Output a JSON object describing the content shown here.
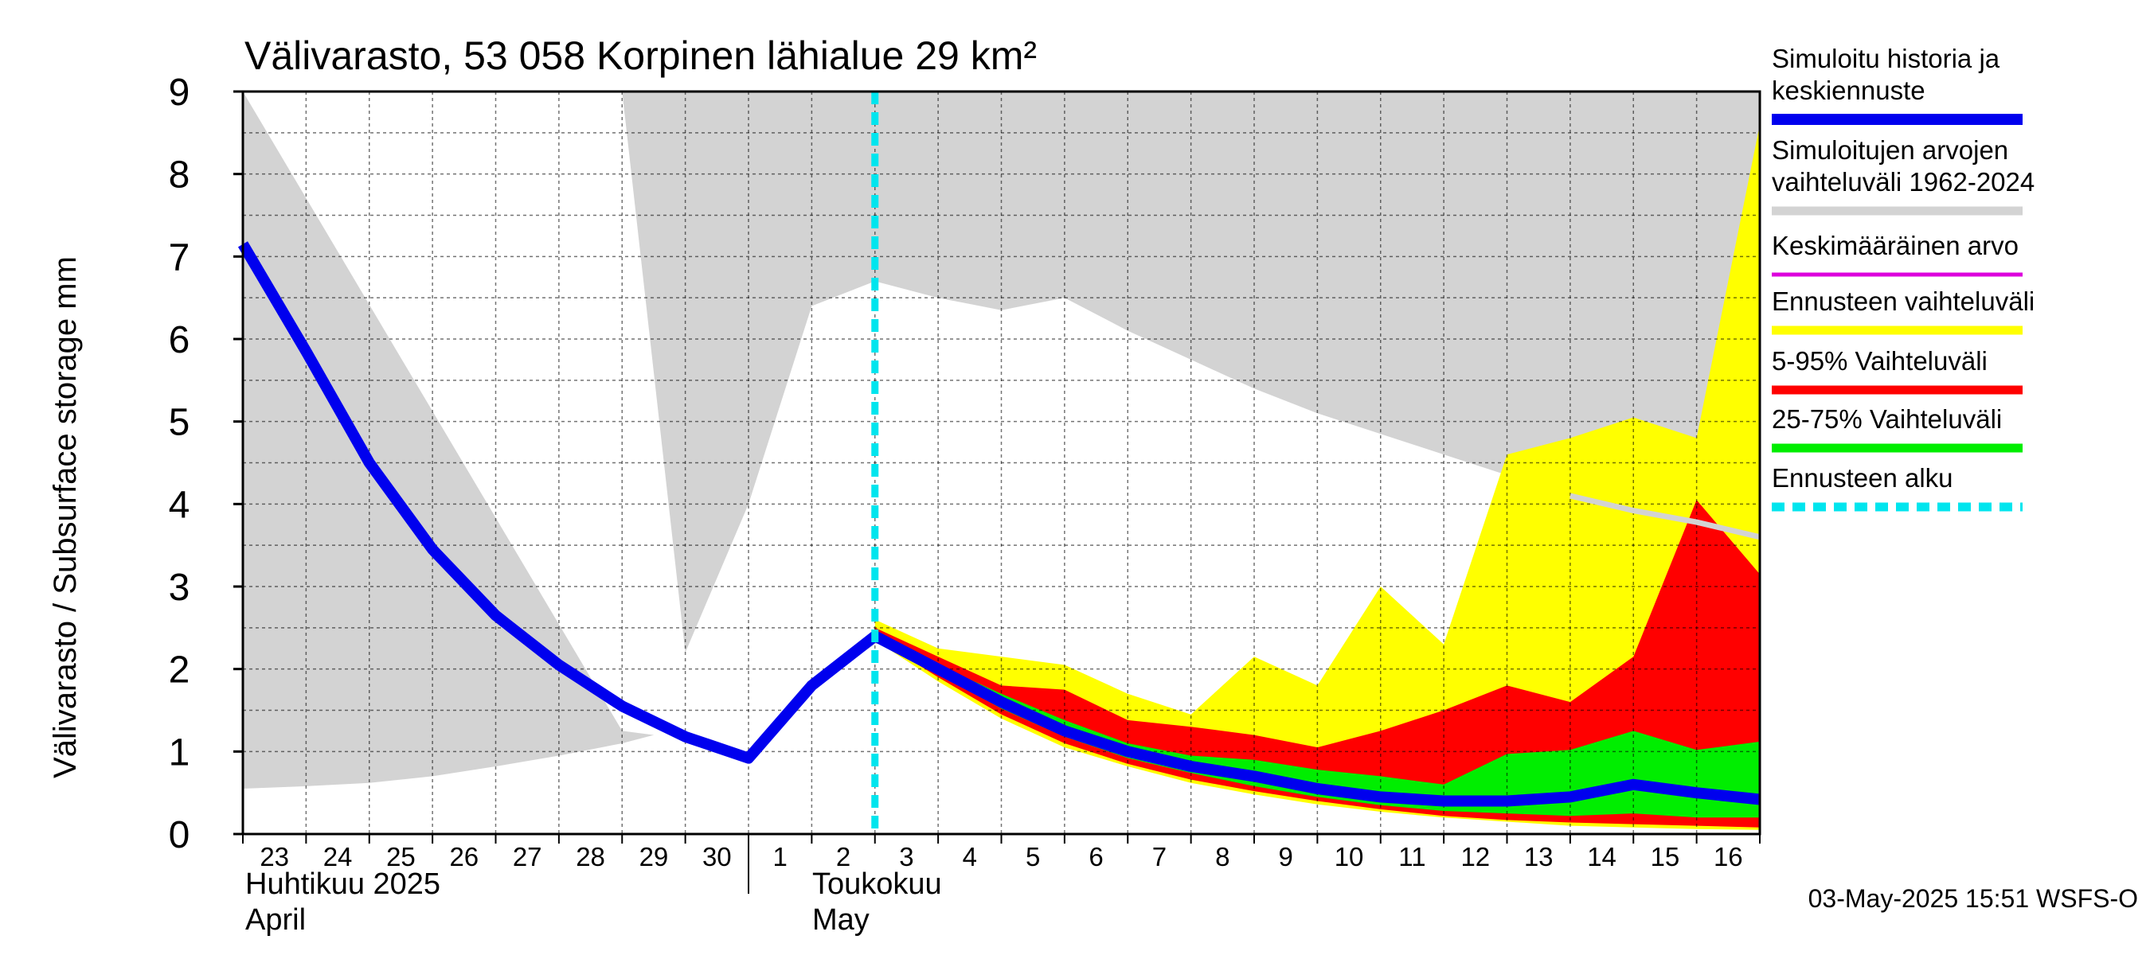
{
  "chart_data": {
    "type": "area",
    "title": "Välivarasto, 53 058 Korpinen lähialue 29 km²",
    "ylabel": "Välivarasto / Subsurface storage  mm",
    "ylim": [
      0,
      9
    ],
    "yticks": [
      "0",
      "1",
      "2",
      "3",
      "4",
      "5",
      "6",
      "7",
      "8",
      "9"
    ],
    "grid": true,
    "legend_position": "right",
    "x_days": [
      "23",
      "24",
      "25",
      "26",
      "27",
      "28",
      "29",
      "30",
      "1",
      "2",
      "3",
      "4",
      "5",
      "6",
      "7",
      "8",
      "9",
      "10",
      "11",
      "12",
      "13",
      "14",
      "15",
      "16"
    ],
    "month_labels": {
      "april_fi": "Huhtikuu  2025",
      "april_en": "April",
      "may_fi": "Toukokuu",
      "may_en": "May"
    },
    "forecast_start": "2025-05-03",
    "timestamp": "03-May-2025 15:51 WSFS-O",
    "colors": {
      "history_range": "#d3d3d3",
      "simulated": "#0000ee",
      "mean": "#dd00dd",
      "forecast_range": "#ffff00",
      "range_5_95": "#ff0000",
      "range_25_75": "#00ee00",
      "forecast_start": "#00e5ee"
    },
    "legend": [
      {
        "lines": [
          "Simuloitu historia ja",
          "keskiennuste"
        ],
        "color": "#0000ee"
      },
      {
        "lines": [
          "Simuloitujen arvojen",
          "vaihteluväli 1962-2024"
        ],
        "color": "#d3d3d3"
      },
      {
        "lines": [
          "Keskimääräinen arvo"
        ],
        "color": "#dd00dd"
      },
      {
        "lines": [
          "Ennusteen vaihteluväli"
        ],
        "color": "#ffff00"
      },
      {
        "lines": [
          "5-95% Vaihteluväli"
        ],
        "color": "#ff0000"
      },
      {
        "lines": [
          "25-75% Vaihteluväli"
        ],
        "color": "#00ee00"
      },
      {
        "lines": [
          "Ennusteen alku"
        ],
        "color": "#00e5ee"
      }
    ],
    "series": {
      "hist_min": [
        [
          0,
          0.55
        ],
        [
          1,
          0.58
        ],
        [
          2,
          0.62
        ],
        [
          3,
          0.7
        ],
        [
          4,
          0.82
        ],
        [
          5,
          0.95
        ],
        [
          6,
          1.1
        ],
        [
          7,
          1.3
        ],
        [
          8,
          1.45
        ],
        [
          9,
          1.8
        ],
        [
          10,
          2.3
        ],
        [
          11,
          2.45
        ],
        [
          12,
          2.4
        ],
        [
          13,
          2.2
        ],
        [
          14,
          1.9
        ],
        [
          15,
          1.6
        ],
        [
          16,
          1.35
        ],
        [
          17,
          1.1
        ],
        [
          18,
          0.95
        ],
        [
          19,
          0.75
        ],
        [
          20,
          0.6
        ],
        [
          21,
          0.5
        ],
        [
          22,
          0.45
        ],
        [
          23,
          0.4
        ],
        [
          24,
          0.35
        ]
      ],
      "hist_max": [
        [
          0,
          9
        ],
        [
          7,
          9
        ],
        [
          8,
          9
        ],
        [
          9,
          9
        ],
        [
          10,
          9
        ],
        [
          11,
          9
        ],
        [
          12,
          9
        ],
        [
          13,
          9
        ],
        [
          14,
          9
        ],
        [
          15,
          9
        ],
        [
          16,
          9
        ],
        [
          17,
          9
        ],
        [
          18,
          9
        ],
        [
          19,
          9
        ],
        [
          20,
          9
        ],
        [
          21,
          9
        ],
        [
          22,
          9
        ],
        [
          23,
          9
        ],
        [
          24,
          9
        ]
      ],
      "hist_white_top": [
        [
          0,
          9
        ],
        [
          6,
          9
        ],
        [
          7,
          2.2
        ],
        [
          8,
          4.0
        ],
        [
          9,
          6.4
        ],
        [
          10,
          6.7
        ],
        [
          11,
          6.5
        ],
        [
          12,
          6.35
        ],
        [
          13,
          6.5
        ],
        [
          14,
          6.1
        ],
        [
          15,
          5.75
        ],
        [
          16,
          5.4
        ],
        [
          17,
          5.1
        ],
        [
          18,
          4.85
        ],
        [
          19,
          4.6
        ],
        [
          20,
          4.35
        ],
        [
          21,
          4.1
        ],
        [
          22,
          3.92
        ],
        [
          23,
          3.78
        ],
        [
          24,
          3.6
        ]
      ],
      "hist_white_bottom": [
        [
          6,
          1.25
        ],
        [
          7,
          1.15
        ],
        [
          8,
          0.9
        ],
        [
          9,
          1.75
        ],
        [
          10,
          2.4
        ],
        [
          11,
          1.95
        ],
        [
          12,
          1.48
        ],
        [
          13,
          1.15
        ],
        [
          14,
          0.88
        ],
        [
          15,
          0.67
        ],
        [
          16,
          0.52
        ],
        [
          17,
          0.4
        ],
        [
          18,
          0.3
        ],
        [
          19,
          0.2
        ],
        [
          20,
          0.15
        ],
        [
          21,
          0.1
        ],
        [
          22,
          0.08
        ],
        [
          23,
          0.06
        ],
        [
          24,
          0.05
        ]
      ],
      "mean": [
        [
          21,
          4.1
        ],
        [
          22,
          3.92
        ],
        [
          23,
          3.78
        ],
        [
          24,
          3.6
        ]
      ],
      "simulated": [
        [
          0,
          7.15
        ],
        [
          1,
          5.85
        ],
        [
          2,
          4.5
        ],
        [
          3,
          3.45
        ],
        [
          4,
          2.65
        ],
        [
          5,
          2.05
        ],
        [
          6,
          1.55
        ],
        [
          7,
          1.18
        ],
        [
          8,
          0.92
        ],
        [
          9,
          1.8
        ],
        [
          10,
          2.4
        ]
      ],
      "median_forecast": [
        [
          10,
          2.4
        ],
        [
          11,
          2.0
        ],
        [
          12,
          1.6
        ],
        [
          13,
          1.25
        ],
        [
          14,
          1.0
        ],
        [
          15,
          0.82
        ],
        [
          16,
          0.7
        ],
        [
          17,
          0.55
        ],
        [
          18,
          0.45
        ],
        [
          19,
          0.4
        ],
        [
          20,
          0.4
        ],
        [
          21,
          0.45
        ],
        [
          22,
          0.6
        ],
        [
          23,
          0.5
        ],
        [
          24,
          0.42
        ]
      ],
      "forecast_max": [
        [
          10,
          2.6
        ],
        [
          11,
          2.25
        ],
        [
          12,
          2.15
        ],
        [
          13,
          2.05
        ],
        [
          14,
          1.7
        ],
        [
          15,
          1.45
        ],
        [
          16,
          2.15
        ],
        [
          17,
          1.8
        ],
        [
          18,
          3.0
        ],
        [
          19,
          2.3
        ],
        [
          20,
          4.6
        ],
        [
          21,
          4.8
        ],
        [
          22,
          5.05
        ],
        [
          23,
          4.8
        ],
        [
          24,
          8.6
        ]
      ],
      "forecast_min": [
        [
          10,
          2.35
        ],
        [
          11,
          1.85
        ],
        [
          12,
          1.4
        ],
        [
          13,
          1.05
        ],
        [
          14,
          0.82
        ],
        [
          15,
          0.62
        ],
        [
          16,
          0.48
        ],
        [
          17,
          0.36
        ],
        [
          18,
          0.27
        ],
        [
          19,
          0.2
        ],
        [
          20,
          0.15
        ],
        [
          21,
          0.1
        ],
        [
          22,
          0.08
        ],
        [
          23,
          0.06
        ],
        [
          24,
          0.05
        ]
      ],
      "p95": [
        [
          10,
          2.5
        ],
        [
          11,
          2.15
        ],
        [
          12,
          1.8
        ],
        [
          13,
          1.75
        ],
        [
          14,
          1.38
        ],
        [
          15,
          1.3
        ],
        [
          16,
          1.2
        ],
        [
          17,
          1.05
        ],
        [
          18,
          1.25
        ],
        [
          19,
          1.5
        ],
        [
          20,
          1.8
        ],
        [
          21,
          1.6
        ],
        [
          22,
          2.15
        ],
        [
          23,
          4.05
        ],
        [
          24,
          3.15
        ]
      ],
      "p5": [
        [
          10,
          2.38
        ],
        [
          11,
          1.9
        ],
        [
          12,
          1.45
        ],
        [
          13,
          1.1
        ],
        [
          14,
          0.85
        ],
        [
          15,
          0.66
        ],
        [
          16,
          0.52
        ],
        [
          17,
          0.4
        ],
        [
          18,
          0.3
        ],
        [
          19,
          0.22
        ],
        [
          20,
          0.17
        ],
        [
          21,
          0.14
        ],
        [
          22,
          0.12
        ],
        [
          23,
          0.1
        ],
        [
          24,
          0.08
        ]
      ],
      "p75": [
        [
          10,
          2.45
        ],
        [
          11,
          2.05
        ],
        [
          12,
          1.7
        ],
        [
          13,
          1.38
        ],
        [
          14,
          1.1
        ],
        [
          15,
          0.95
        ],
        [
          16,
          0.9
        ],
        [
          17,
          0.78
        ],
        [
          18,
          0.7
        ],
        [
          19,
          0.6
        ],
        [
          20,
          0.97
        ],
        [
          21,
          1.02
        ],
        [
          22,
          1.25
        ],
        [
          23,
          1.02
        ],
        [
          24,
          1.12
        ]
      ],
      "p25": [
        [
          10,
          2.4
        ],
        [
          11,
          1.95
        ],
        [
          12,
          1.52
        ],
        [
          13,
          1.18
        ],
        [
          14,
          0.92
        ],
        [
          15,
          0.74
        ],
        [
          16,
          0.58
        ],
        [
          17,
          0.45
        ],
        [
          18,
          0.35
        ],
        [
          19,
          0.28
        ],
        [
          20,
          0.25
        ],
        [
          21,
          0.22
        ],
        [
          22,
          0.25
        ],
        [
          23,
          0.2
        ],
        [
          24,
          0.2
        ]
      ]
    }
  }
}
